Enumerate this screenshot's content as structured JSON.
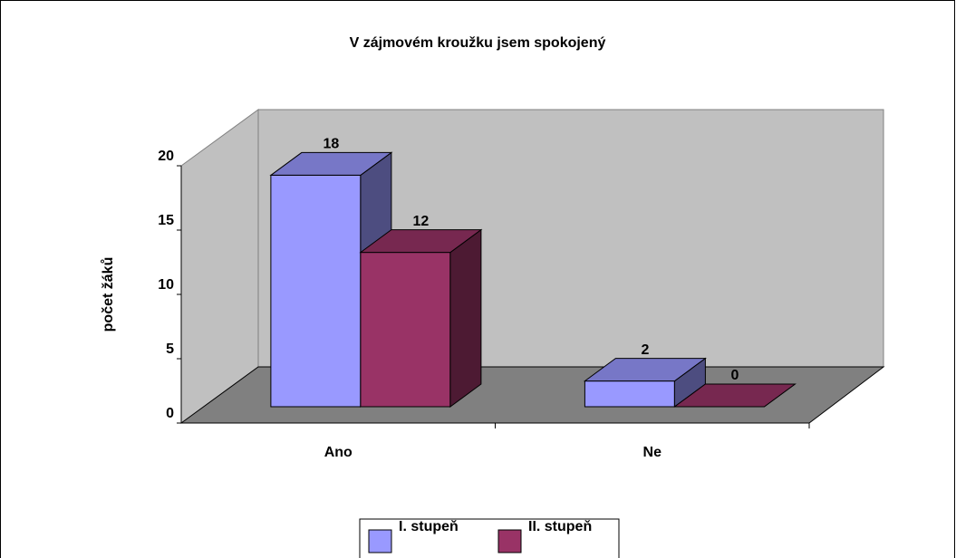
{
  "chart_data": {
    "type": "bar3d",
    "title": "V zájmovém kroužku jsem spokojený",
    "y_axis_label": "počet žáků",
    "categories": [
      "Ano",
      "Ne"
    ],
    "series": [
      {
        "name": "I. stupeň",
        "color": "#9999ff",
        "values": [
          18,
          2
        ]
      },
      {
        "name": "II. stupeň",
        "color": "#993366",
        "values": [
          12,
          0
        ]
      }
    ],
    "ylim": [
      0,
      20
    ],
    "yticks": [
      0,
      5,
      10,
      15,
      20
    ],
    "grid": false,
    "legend": "bottom"
  }
}
